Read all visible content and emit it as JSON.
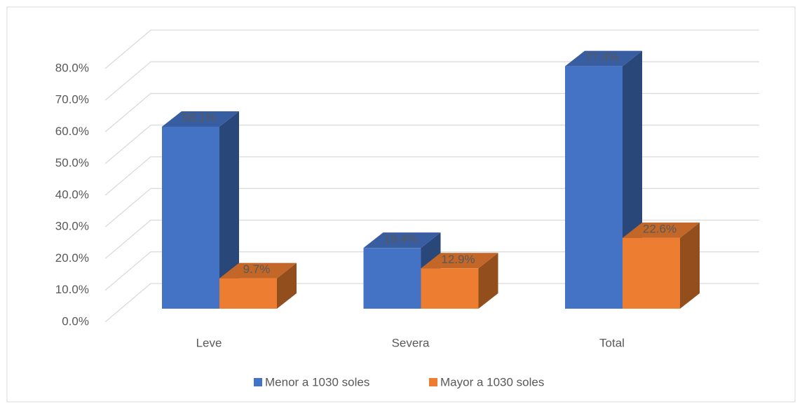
{
  "chart_data": {
    "type": "bar3d",
    "categories": [
      "Leve",
      "Severa",
      "Total"
    ],
    "series": [
      {
        "name": "Menor a 1030 soles",
        "color": "#4472c4",
        "values": [
          58.1,
          19.4,
          77.4
        ],
        "value_labels": [
          "58.1%",
          "19.4%",
          "77.4%"
        ]
      },
      {
        "name": "Mayor a 1030 soles",
        "color": "#ed7d31",
        "values": [
          9.7,
          12.9,
          22.6
        ],
        "value_labels": [
          "9.7%",
          "12.9%",
          "22.6%"
        ]
      }
    ],
    "ylim": [
      0,
      80
    ],
    "yticks": [
      {
        "value": 0,
        "label": "0.0%"
      },
      {
        "value": 10,
        "label": "10.0%"
      },
      {
        "value": 20,
        "label": "20.0%"
      },
      {
        "value": 30,
        "label": "30.0%"
      },
      {
        "value": 40,
        "label": "40.0%"
      },
      {
        "value": 50,
        "label": "50.0%"
      },
      {
        "value": 60,
        "label": "60.0%"
      },
      {
        "value": 70,
        "label": "70.0%"
      },
      {
        "value": 80,
        "label": "80.0%"
      }
    ],
    "grid": true,
    "legend": "bottom"
  }
}
